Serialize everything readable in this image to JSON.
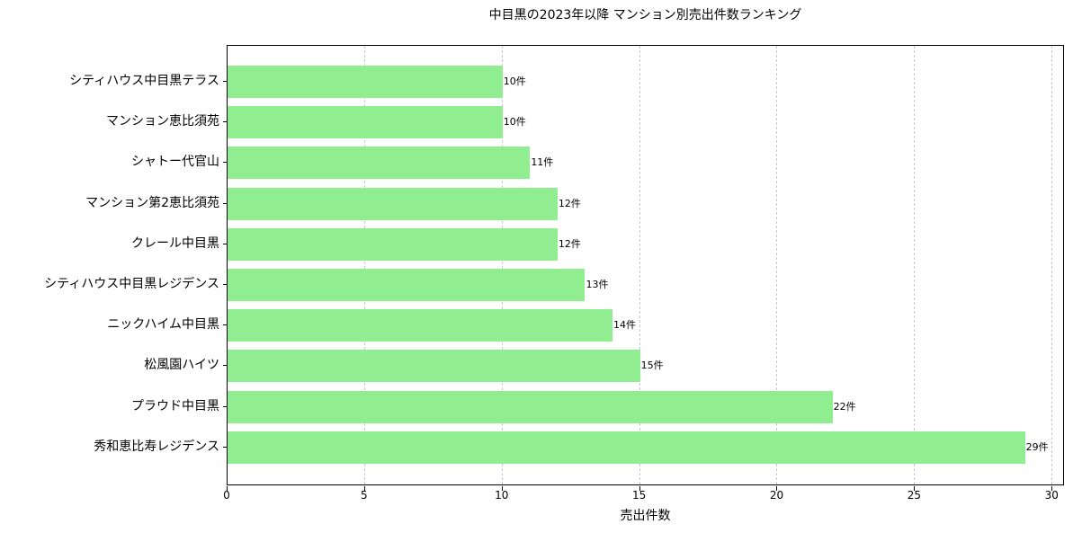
{
  "chart_data": {
    "type": "bar",
    "orientation": "horizontal",
    "title": "中目黒の2023年以降 マンション別売出件数ランキング",
    "xlabel": "売出件数",
    "ylabel": "",
    "xlim": [
      0,
      30.45
    ],
    "xticks": [
      0,
      5,
      10,
      15,
      20,
      25,
      30
    ],
    "grid": {
      "x": true,
      "y": false,
      "style": "dashed"
    },
    "bar_color": "#90ee90",
    "categories": [
      "シティハウス中目黒テラス",
      "マンション恵比須苑",
      "シャトー代官山",
      "マンション第2恵比須苑",
      "クレール中目黒",
      "シティハウス中目黒レジデンス",
      "ニックハイム中目黒",
      "松風園ハイツ",
      "プラウド中目黒",
      "秀和恵比寿レジデンス"
    ],
    "values": [
      10,
      10,
      11,
      12,
      12,
      13,
      14,
      15,
      22,
      29
    ],
    "value_labels": [
      "10件",
      "10件",
      "11件",
      "12件",
      "12件",
      "13件",
      "14件",
      "15件",
      "22件",
      "29件"
    ],
    "legend": null
  }
}
